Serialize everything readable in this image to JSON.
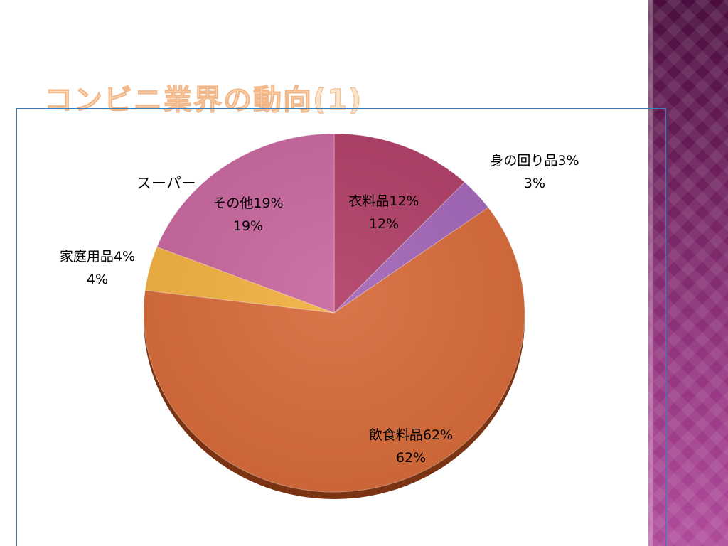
{
  "slide": {
    "title": "コンビニ業界の動向(1)"
  },
  "chart_data": {
    "type": "pie",
    "title": "スーパー",
    "start_angle_deg": 0,
    "direction": "clockwise",
    "slices": [
      {
        "label": "衣料品",
        "value": 12,
        "percent_text": "12%",
        "color": "#b03f68"
      },
      {
        "label": "身の回り品",
        "value": 3,
        "percent_text": "3%",
        "color": "#a366b8"
      },
      {
        "label": "飲食料品",
        "value": 62,
        "percent_text": "62%",
        "color": "#d76b3a"
      },
      {
        "label": "家庭用品",
        "value": 4,
        "percent_text": "4%",
        "color": "#f2b041"
      },
      {
        "label": "その他",
        "value": 19,
        "percent_text": "19%",
        "color": "#c8679e"
      }
    ]
  }
}
